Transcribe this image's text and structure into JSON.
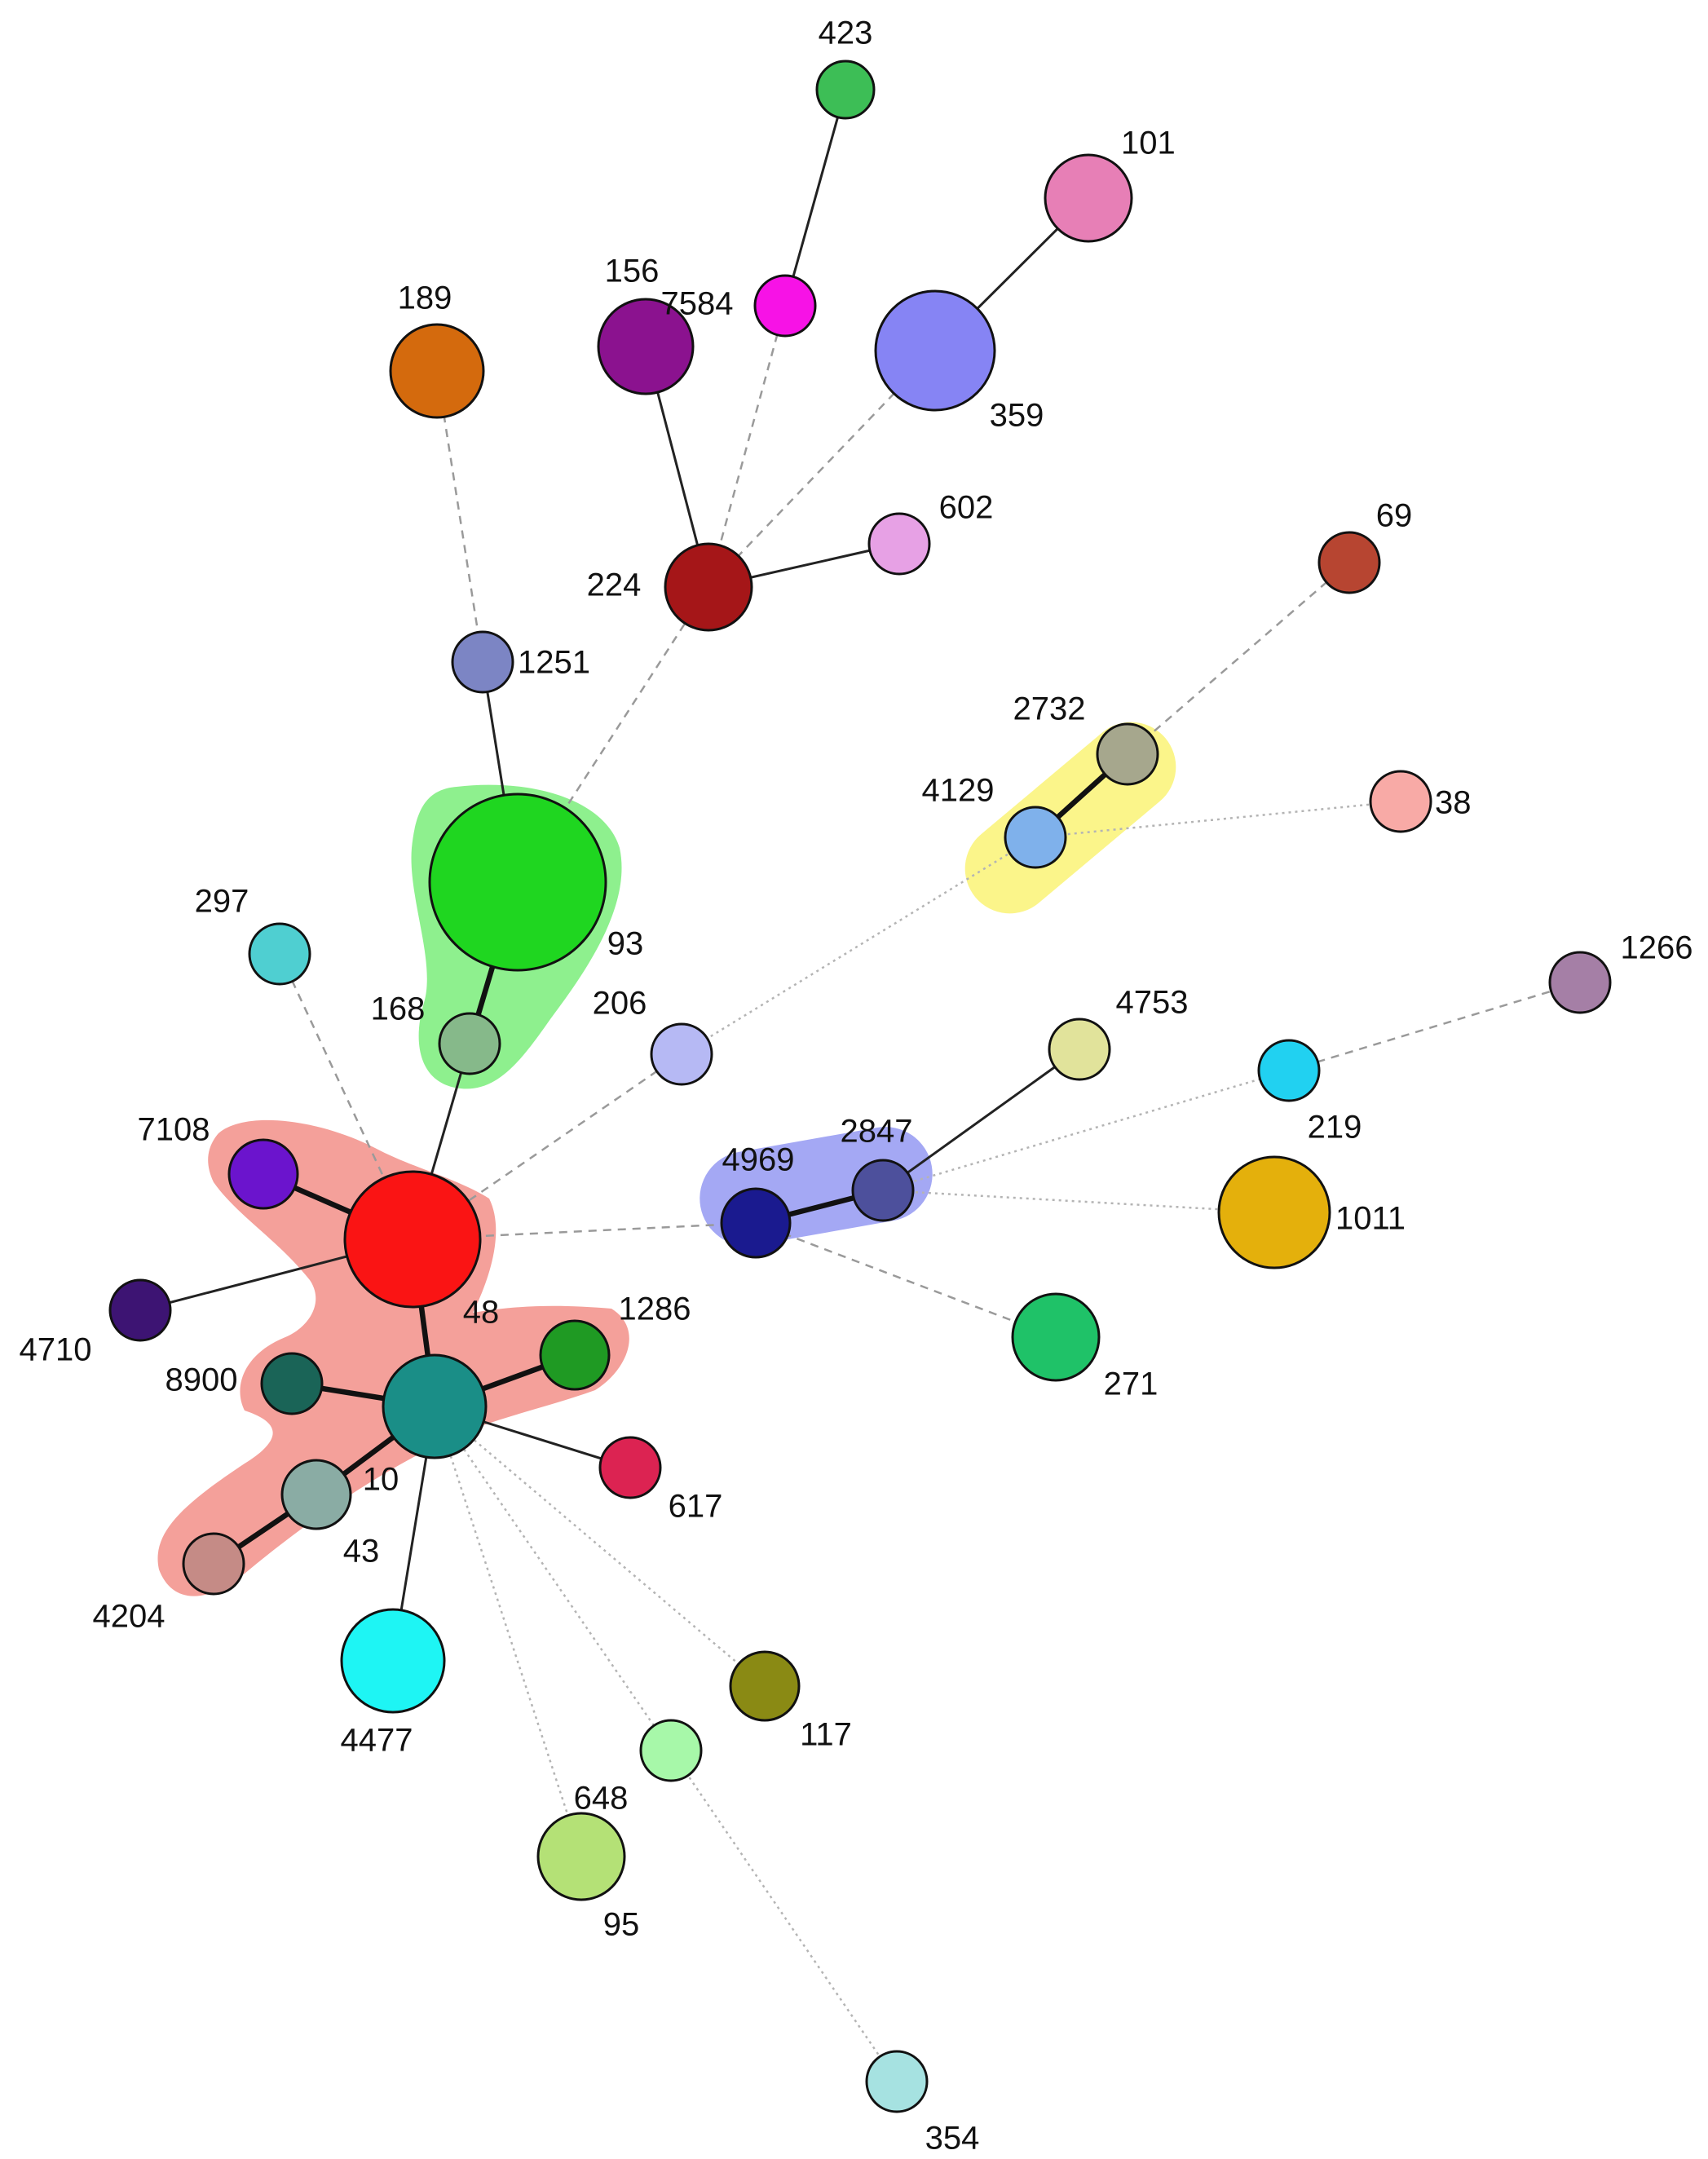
{
  "colors": {
    "cluster_green": "#8ef08e",
    "cluster_red": "#f4a09a",
    "cluster_yellow": "#fbf58a",
    "cluster_blue": "#a4a8f4"
  },
  "nodes": [
    {
      "id": "423",
      "label": "423",
      "color": "#3dbe56"
    },
    {
      "id": "101",
      "label": "101",
      "color": "#e77fb6"
    },
    {
      "id": "156",
      "label": "156",
      "color": "#8b128f"
    },
    {
      "id": "7584",
      "label": "7584",
      "color": "#f712e6"
    },
    {
      "id": "189",
      "label": "189",
      "color": "#d46a0d"
    },
    {
      "id": "359",
      "label": "359",
      "color": "#8684f4"
    },
    {
      "id": "602",
      "label": "602",
      "color": "#e7a1e5"
    },
    {
      "id": "224",
      "label": "224",
      "color": "#a51618"
    },
    {
      "id": "69",
      "label": "69",
      "color": "#b74531"
    },
    {
      "id": "1251",
      "label": "1251",
      "color": "#7c85c4"
    },
    {
      "id": "2732",
      "label": "2732",
      "color": "#a6a78d"
    },
    {
      "id": "4129",
      "label": "4129",
      "color": "#7fb1eb"
    },
    {
      "id": "38",
      "label": "38",
      "color": "#f8aaa6"
    },
    {
      "id": "93",
      "label": "93",
      "color": "#1fd620"
    },
    {
      "id": "297",
      "label": "297",
      "color": "#4fcfd1"
    },
    {
      "id": "1266",
      "label": "1266",
      "color": "#a57fa6"
    },
    {
      "id": "168",
      "label": "168",
      "color": "#86b98a"
    },
    {
      "id": "206",
      "label": "206",
      "color": "#b6b9f4"
    },
    {
      "id": "4753",
      "label": "4753",
      "color": "#e1e39b"
    },
    {
      "id": "219",
      "label": "219",
      "color": "#21d1f1"
    },
    {
      "id": "7108",
      "label": "7108",
      "color": "#6b14cd"
    },
    {
      "id": "4969",
      "label": "4969",
      "color": "#1a1a8f"
    },
    {
      "id": "2847",
      "label": "2847",
      "color": "#4d509c"
    },
    {
      "id": "1011",
      "label": "1011",
      "color": "#e4b00c"
    },
    {
      "id": "48",
      "label": "48",
      "color": "#fa1414"
    },
    {
      "id": "4710",
      "label": "4710",
      "color": "#3d1473"
    },
    {
      "id": "1286",
      "label": "1286",
      "color": "#1f9a23"
    },
    {
      "id": "271",
      "label": "271",
      "color": "#1fc268"
    },
    {
      "id": "8900",
      "label": "8900",
      "color": "#1a6457"
    },
    {
      "id": "10",
      "label": "10",
      "color": "#1a8e87"
    },
    {
      "id": "617",
      "label": "617",
      "color": "#dc2352"
    },
    {
      "id": "43",
      "label": "43",
      "color": "#8aaca4"
    },
    {
      "id": "4204",
      "label": "4204",
      "color": "#c58b86"
    },
    {
      "id": "117",
      "label": "117",
      "color": "#8a8a14"
    },
    {
      "id": "4477",
      "label": "4477",
      "color": "#1ef5f4"
    },
    {
      "id": "648",
      "label": "648",
      "color": "#a7f8a9"
    },
    {
      "id": "95",
      "label": "95",
      "color": "#b4e176"
    },
    {
      "id": "354",
      "label": "354",
      "color": "#a6e2e1"
    }
  ],
  "edges": [
    {
      "from": "423",
      "to": "7584",
      "style": "solid"
    },
    {
      "from": "101",
      "to": "359",
      "style": "solid"
    },
    {
      "from": "156",
      "to": "224",
      "style": "solid"
    },
    {
      "from": "7584",
      "to": "224",
      "style": "dashed"
    },
    {
      "from": "359",
      "to": "224",
      "style": "dashed"
    },
    {
      "from": "602",
      "to": "224",
      "style": "solid"
    },
    {
      "from": "189",
      "to": "1251",
      "style": "dashed"
    },
    {
      "from": "1251",
      "to": "93",
      "style": "solid"
    },
    {
      "from": "224",
      "to": "93",
      "style": "dashed"
    },
    {
      "from": "69",
      "to": "2732",
      "style": "dashed"
    },
    {
      "from": "2732",
      "to": "4129",
      "style": "bold"
    },
    {
      "from": "4129",
      "to": "38",
      "style": "dotted"
    },
    {
      "from": "4129",
      "to": "206",
      "style": "dotted"
    },
    {
      "from": "93",
      "to": "168",
      "style": "bold"
    },
    {
      "from": "168",
      "to": "48",
      "style": "solid"
    },
    {
      "from": "297",
      "to": "48",
      "style": "dashed"
    },
    {
      "from": "206",
      "to": "48",
      "style": "dashed"
    },
    {
      "from": "7108",
      "to": "48",
      "style": "bold"
    },
    {
      "from": "4710",
      "to": "48",
      "style": "solid"
    },
    {
      "from": "48",
      "to": "4969",
      "style": "dashed"
    },
    {
      "from": "48",
      "to": "10",
      "style": "bold"
    },
    {
      "from": "4969",
      "to": "2847",
      "style": "bold"
    },
    {
      "from": "2847",
      "to": "4753",
      "style": "solid"
    },
    {
      "from": "2847",
      "to": "219",
      "style": "dotted"
    },
    {
      "from": "2847",
      "to": "1011",
      "style": "dotted"
    },
    {
      "from": "4969",
      "to": "271",
      "style": "dashed"
    },
    {
      "from": "219",
      "to": "1266",
      "style": "dashed"
    },
    {
      "from": "8900",
      "to": "10",
      "style": "bold"
    },
    {
      "from": "1286",
      "to": "10",
      "style": "bold"
    },
    {
      "from": "10",
      "to": "617",
      "style": "solid"
    },
    {
      "from": "10",
      "to": "43",
      "style": "bold"
    },
    {
      "from": "43",
      "to": "4204",
      "style": "bold"
    },
    {
      "from": "10",
      "to": "4477",
      "style": "solid"
    },
    {
      "from": "10",
      "to": "117",
      "style": "dotted"
    },
    {
      "from": "10",
      "to": "648",
      "style": "dotted"
    },
    {
      "from": "10",
      "to": "95",
      "style": "dotted"
    },
    {
      "from": "648",
      "to": "354",
      "style": "dotted"
    }
  ]
}
